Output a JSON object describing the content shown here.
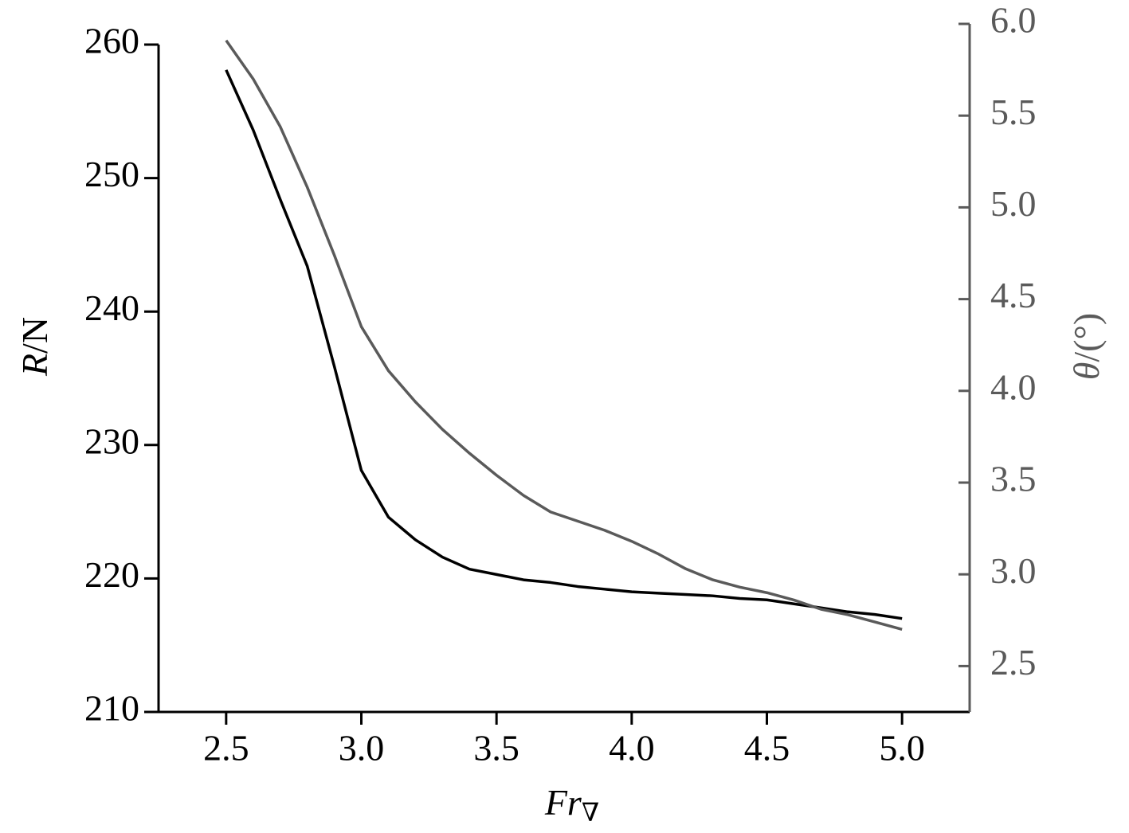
{
  "chart_data": {
    "type": "line",
    "xlabel": {
      "text": "Fr",
      "subscript": "∇"
    },
    "ylabel": {
      "italic": "R",
      "text": "/N"
    },
    "y2label": {
      "italic": "θ",
      "text": "/(°)"
    },
    "x": [
      2.5,
      2.6,
      2.7,
      2.8,
      2.9,
      3.0,
      3.1,
      3.2,
      3.3,
      3.4,
      3.5,
      3.6,
      3.7,
      3.8,
      3.9,
      4.0,
      4.1,
      4.2,
      4.3,
      4.4,
      4.5,
      4.6,
      4.7,
      4.8,
      4.9,
      5.0
    ],
    "series": [
      {
        "color": "#000000",
        "axis": "y",
        "values": [
          258.1,
          253.6,
          248.4,
          243.4,
          235.9,
          228.1,
          224.6,
          222.9,
          221.6,
          220.7,
          220.3,
          219.9,
          219.7,
          219.4,
          219.2,
          219.0,
          218.9,
          218.8,
          218.7,
          218.5,
          218.4,
          218.1,
          217.8,
          217.5,
          217.3,
          217.0
        ]
      },
      {
        "color": "#5a5a5a",
        "axis": "y2",
        "values": [
          5.91,
          5.7,
          5.44,
          5.11,
          4.74,
          4.35,
          4.11,
          3.94,
          3.79,
          3.66,
          3.54,
          3.43,
          3.34,
          3.29,
          3.24,
          3.18,
          3.11,
          3.03,
          2.97,
          2.93,
          2.9,
          2.86,
          2.81,
          2.78,
          2.74,
          2.7
        ]
      }
    ],
    "xlim": [
      2.25,
      5.25
    ],
    "xticks": [
      2.5,
      {
        "value": 3,
        "label": "3.0"
      },
      3.5,
      {
        "value": 4,
        "label": "4.0"
      },
      4.5,
      {
        "value": 5,
        "label": "5.0"
      }
    ],
    "ylim": [
      210,
      260
    ],
    "yticks": [
      210,
      220,
      230,
      240,
      250,
      260
    ],
    "y2lim": [
      2.25,
      6
    ],
    "y2ticks": [
      2.5,
      {
        "value": 3,
        "label": "3.0"
      },
      3.5,
      {
        "value": 4,
        "label": "4.0"
      },
      4.5,
      {
        "value": 5,
        "label": "5.0"
      },
      5.5,
      {
        "value": 6,
        "label": "6.0"
      }
    ],
    "y2color": "#5a5a5a"
  }
}
